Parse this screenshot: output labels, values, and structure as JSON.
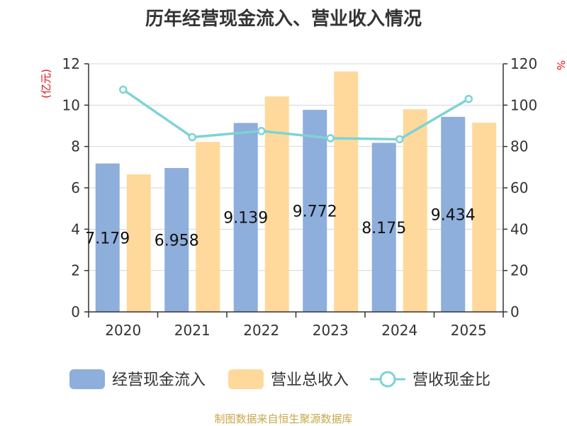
{
  "chart_data": {
    "type": "bar",
    "title": "历年经营现金流入、营业收入情况",
    "categories": [
      "2020",
      "2021",
      "2022",
      "2023",
      "2024",
      "2025"
    ],
    "left_axis": {
      "unit": "(亿元)",
      "ylim": [
        0,
        12
      ],
      "ticks": [
        "0",
        "2",
        "4",
        "6",
        "8",
        "10",
        "12"
      ]
    },
    "right_axis": {
      "unit": "%",
      "ylim": [
        0,
        120
      ],
      "ticks": [
        "0",
        "20",
        "40",
        "60",
        "80",
        "100",
        "120"
      ]
    },
    "series": [
      {
        "name": "经营现金流入",
        "type": "bar",
        "axis": "left",
        "color": "#8eaedb",
        "values": [
          7.179,
          6.958,
          9.139,
          9.772,
          8.175,
          9.434
        ],
        "labels": [
          "7.179",
          "6.958",
          "9.139",
          "9.772",
          "8.175",
          "9.434"
        ]
      },
      {
        "name": "营业总收入",
        "type": "bar",
        "axis": "left",
        "color": "#fed99b",
        "values": [
          6.65,
          8.22,
          10.42,
          11.63,
          9.8,
          9.15
        ]
      },
      {
        "name": "营收现金比",
        "type": "line",
        "axis": "right",
        "color": "#7ed3d4",
        "values": [
          107.5,
          84.5,
          87.5,
          84.0,
          83.5,
          103.0
        ]
      }
    ],
    "grid": true,
    "legend": "bottom"
  },
  "source": "制图数据来自恒生聚源数据库"
}
